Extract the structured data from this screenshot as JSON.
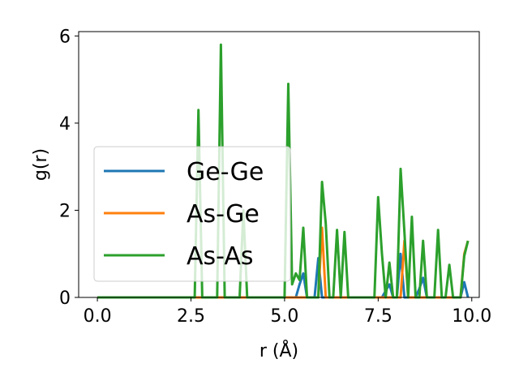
{
  "chart_data": {
    "type": "line",
    "xlabel": "r (Å)",
    "ylabel": "g(r)",
    "xlim": [
      -0.5,
      10.2
    ],
    "ylim": [
      0,
      6.1
    ],
    "x_ticks": [
      0.0,
      2.5,
      5.0,
      7.5,
      10.0
    ],
    "x_tick_labels": [
      "0.0",
      "2.5",
      "5.0",
      "7.5",
      "10.0"
    ],
    "y_ticks": [
      0,
      2,
      4,
      6
    ],
    "y_tick_labels": [
      "0",
      "2",
      "4",
      "6"
    ],
    "grid": false,
    "legend_position": "center-left",
    "series": [
      {
        "name": "Ge-Ge",
        "color": "#1f77b4",
        "x": [
          0.0,
          2.6,
          5.3,
          5.4,
          5.5,
          5.6,
          5.8,
          5.9,
          6.0,
          6.1,
          7.6,
          7.7,
          7.8,
          7.9,
          8.0,
          8.1,
          8.2,
          8.5,
          8.6,
          8.7,
          8.8,
          9.7,
          9.8,
          9.9
        ],
        "y": [
          0,
          0,
          0,
          0.3,
          0.55,
          0,
          0,
          0.9,
          0,
          0,
          0,
          0.15,
          0.3,
          0,
          0,
          1.0,
          0,
          0,
          0.2,
          0.45,
          0,
          0,
          0.35,
          0
        ]
      },
      {
        "name": "As-Ge",
        "color": "#ff7f0e",
        "x": [
          0.0,
          5.9,
          6.0,
          6.1,
          8.1,
          8.2,
          8.3,
          9.7,
          9.8,
          9.9
        ],
        "y": [
          0,
          0,
          1.6,
          0,
          0,
          1.3,
          0,
          0,
          1.0,
          1.3
        ]
      },
      {
        "name": "As-As",
        "color": "#2ca02c",
        "x": [
          0.0,
          2.6,
          2.7,
          2.8,
          3.2,
          3.3,
          3.4,
          3.8,
          3.9,
          4.0,
          5.0,
          5.1,
          5.2,
          5.3,
          5.4,
          5.5,
          5.6,
          5.9,
          6.0,
          6.1,
          6.2,
          6.3,
          6.4,
          6.5,
          6.6,
          6.7,
          7.4,
          7.5,
          7.6,
          7.7,
          7.8,
          7.9,
          8.0,
          8.1,
          8.2,
          8.3,
          8.4,
          8.5,
          8.6,
          8.7,
          8.8,
          9.0,
          9.1,
          9.2,
          9.3,
          9.4,
          9.5,
          9.7,
          9.8,
          9.9
        ],
        "y": [
          0,
          0,
          4.3,
          0,
          0,
          5.8,
          0,
          0,
          2.0,
          0,
          0,
          4.9,
          0.3,
          0.55,
          0.4,
          1.6,
          0,
          0,
          2.65,
          1.7,
          0,
          0,
          1.55,
          0,
          1.5,
          0,
          0,
          2.3,
          1.0,
          0,
          0.8,
          0,
          0,
          2.95,
          1.5,
          0,
          1.85,
          0,
          0,
          1.3,
          0,
          0,
          1.55,
          0,
          0,
          0.75,
          0,
          0,
          0.95,
          1.3
        ]
      }
    ]
  }
}
